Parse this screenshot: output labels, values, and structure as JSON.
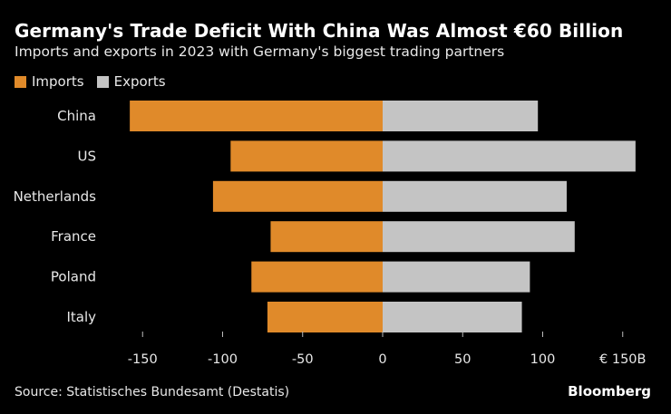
{
  "title": "Germany's Trade Deficit With China Was Almost €60 Billion",
  "subtitle": "Imports and exports in 2023 with Germany's biggest trading partners",
  "legend": [
    {
      "label": "Imports",
      "color": "#e08a2a"
    },
    {
      "label": "Exports",
      "color": "#c4c4c4"
    }
  ],
  "source": "Source: Statistisches Bundesamt (Destatis)",
  "brand": "Bloomberg",
  "chart_data": {
    "type": "bar",
    "orientation": "horizontal-diverging",
    "categories": [
      "China",
      "US",
      "Netherlands",
      "France",
      "Poland",
      "Italy"
    ],
    "series": [
      {
        "name": "Imports",
        "color": "#e08a2a",
        "values": [
          -158,
          -95,
          -106,
          -70,
          -82,
          -72
        ]
      },
      {
        "name": "Exports",
        "color": "#c4c4c4",
        "values": [
          97,
          158,
          115,
          120,
          92,
          87
        ]
      }
    ],
    "xlim": [
      -170,
      160
    ],
    "xticks": [
      -150,
      -100,
      -50,
      0,
      50,
      100,
      150
    ],
    "xtick_labels": [
      "-150",
      "-100",
      "-50",
      "0",
      "50",
      "100",
      "€ 150B"
    ],
    "grid": false,
    "legend_position": "top-left"
  }
}
